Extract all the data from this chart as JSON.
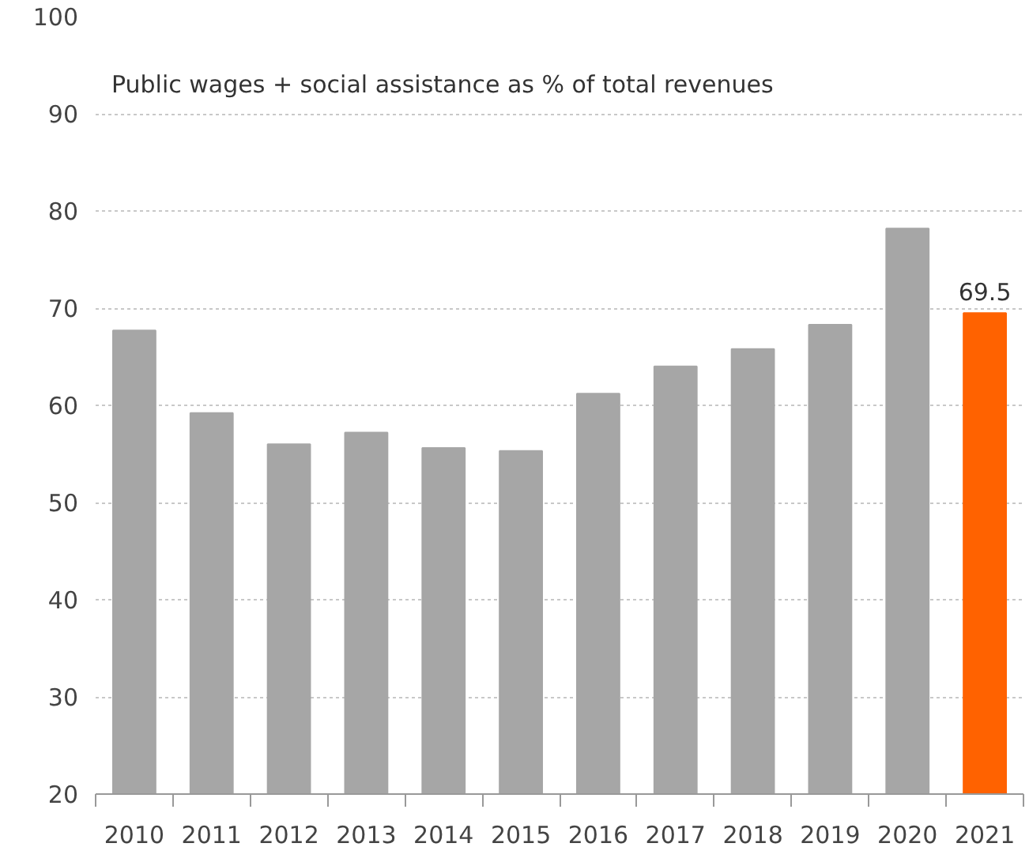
{
  "chart_data": {
    "type": "bar",
    "title": "Public wages + social assistance as % of total revenues",
    "categories": [
      "2010",
      "2011",
      "2012",
      "2013",
      "2014",
      "2015",
      "2016",
      "2017",
      "2018",
      "2019",
      "2020",
      "2021"
    ],
    "values": [
      67.7,
      59.2,
      56.0,
      57.2,
      55.6,
      55.3,
      61.2,
      64.0,
      65.8,
      68.3,
      78.2,
      69.5
    ],
    "colors": [
      "#a6a6a6",
      "#a6a6a6",
      "#a6a6a6",
      "#a6a6a6",
      "#a6a6a6",
      "#a6a6a6",
      "#a6a6a6",
      "#a6a6a6",
      "#a6a6a6",
      "#a6a6a6",
      "#a6a6a6",
      "#ff6200"
    ],
    "value_labels": [
      null,
      null,
      null,
      null,
      null,
      null,
      null,
      null,
      null,
      null,
      null,
      "69.5"
    ],
    "ylim": [
      20,
      100
    ],
    "yticks": [
      20,
      30,
      40,
      50,
      60,
      70,
      80,
      90,
      100
    ],
    "grid": "y"
  }
}
